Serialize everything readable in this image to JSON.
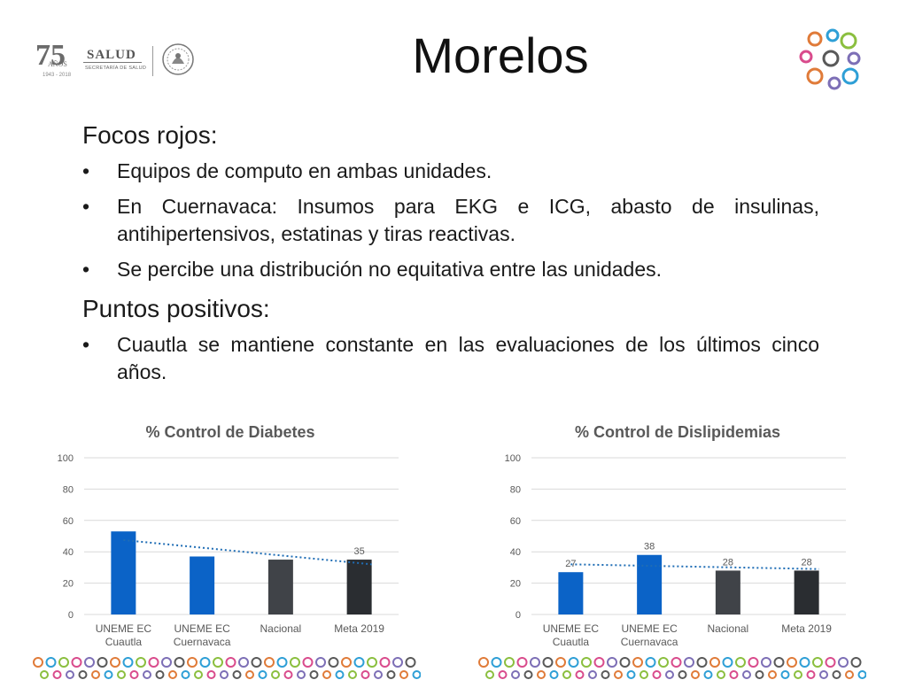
{
  "header": {
    "title": "Morelos",
    "logo": {
      "anniversary": "75",
      "anos_label": "AÑOS",
      "years": "1943 - 2018",
      "brand": "SALUD",
      "subtitle": "SECRETARÍA DE SALUD"
    }
  },
  "content": {
    "sections": [
      {
        "heading": "Focos rojos:",
        "bullets": [
          "Equipos de computo en ambas unidades.",
          "En Cuernavaca: Insumos para EKG e ICG, abasto de insulinas, antihipertensivos, estatinas y tiras reactivas.",
          "Se percibe una distribución no equitativa entre las unidades."
        ]
      },
      {
        "heading": "Puntos positivos:",
        "bullets": [
          "Cuautla se mantiene constante en las evaluaciones de los últimos cinco años."
        ]
      }
    ]
  },
  "chart_data": [
    {
      "type": "bar",
      "title": "% Control de Diabetes",
      "categories": [
        [
          "UNEME EC",
          "Cuautla"
        ],
        [
          "UNEME EC",
          "Cuernavaca"
        ],
        [
          "Nacional"
        ],
        [
          "Meta 2019"
        ]
      ],
      "values": [
        53,
        37,
        35,
        35
      ],
      "data_labels": [
        "",
        "",
        "",
        "35"
      ],
      "colors": [
        "#0b63c7",
        "#0b63c7",
        "#404348",
        "#2a2d31"
      ],
      "trendline": {
        "from": 47.5,
        "to": 32,
        "color": "#1f6db5",
        "style": "dotted"
      },
      "ylim": [
        0,
        100
      ],
      "yticks": [
        0,
        20,
        40,
        60,
        80,
        100
      ],
      "grid": true
    },
    {
      "type": "bar",
      "title": "% Control de Dislipidemias",
      "categories": [
        [
          "UNEME EC",
          "Cuautla"
        ],
        [
          "UNEME EC",
          "Cuernavaca"
        ],
        [
          "Nacional"
        ],
        [
          "Meta 2019"
        ]
      ],
      "values": [
        27,
        38,
        28,
        28
      ],
      "data_labels": [
        "27",
        "38",
        "28",
        "28"
      ],
      "colors": [
        "#0b63c7",
        "#0b63c7",
        "#404348",
        "#2a2d31"
      ],
      "trendline": {
        "from": 32,
        "to": 29,
        "color": "#1f6db5",
        "style": "dotted"
      },
      "ylim": [
        0,
        100
      ],
      "yticks": [
        0,
        20,
        40,
        60,
        80,
        100
      ],
      "grid": true
    }
  ],
  "colors": {
    "ring_palette": [
      "#e07b39",
      "#2e9fd6",
      "#8bbf3f",
      "#d94b8c",
      "#7d6fb6",
      "#595959"
    ]
  }
}
